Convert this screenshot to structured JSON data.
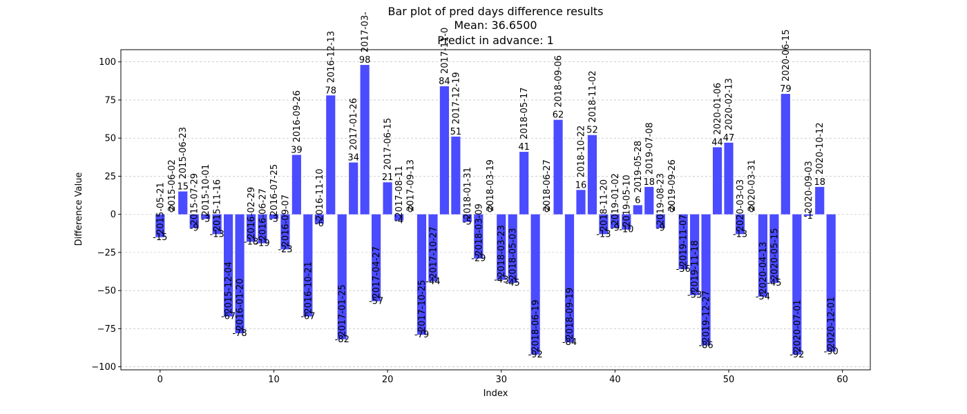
{
  "chart_data": {
    "type": "bar",
    "title": "Bar plot of pred days difference results",
    "subtitle_lines": [
      "Mean: 36.6500",
      "Predict in advance: 1"
    ],
    "xlabel": "Index",
    "ylabel": "Difference Value",
    "xlim": [
      -3.45,
      62.45
    ],
    "ylim": [
      -102,
      108
    ],
    "xticks": [
      0,
      10,
      20,
      30,
      40,
      50,
      60
    ],
    "yticks": [
      -100,
      -75,
      -50,
      -25,
      0,
      25,
      50,
      75,
      100
    ],
    "grid": "y-dashed",
    "bar_color": "#4b4bff",
    "x": [
      0,
      1,
      2,
      3,
      4,
      5,
      6,
      7,
      8,
      9,
      10,
      11,
      12,
      13,
      14,
      15,
      16,
      17,
      18,
      19,
      20,
      21,
      22,
      23,
      24,
      25,
      26,
      27,
      28,
      29,
      30,
      31,
      32,
      33,
      34,
      35,
      36,
      37,
      38,
      39,
      40,
      41,
      42,
      43,
      44,
      45,
      46,
      47,
      48,
      49,
      50,
      51,
      52,
      53,
      54,
      55,
      56,
      57,
      58,
      59
    ],
    "values": [
      -15,
      0,
      15,
      -9,
      -3,
      -13,
      -67,
      -78,
      -18,
      -19,
      -3,
      -23,
      39,
      -67,
      -6,
      78,
      -82,
      34,
      98,
      -57,
      21,
      -4,
      0,
      -79,
      -44,
      84,
      51,
      -5,
      -29,
      0,
      -43,
      -45,
      41,
      -92,
      0,
      62,
      -84,
      16,
      52,
      -13,
      -9,
      -10,
      6,
      18,
      -9,
      0,
      -36,
      -53,
      -86,
      44,
      47,
      -13,
      0,
      -54,
      -45,
      79,
      -92,
      -1,
      18,
      -90
    ],
    "dates": [
      "2015-05-21",
      "2015-06-02",
      "2015-06-23",
      "2015-07-29",
      "2015-10-01",
      "2015-11-16",
      "2015-12-04",
      "2016-01-20",
      "2016-02-29",
      "2016-06-27",
      "2016-07-25",
      "2016-09-07",
      "2016-09-26",
      "2016-10-21",
      "2016-11-10",
      "2016-12-13",
      "2017-01-25",
      "2017-01-26",
      "2017-03-",
      "2017-04-27",
      "2017-06-15",
      "2017-08-11",
      "2017-09-13",
      "2017-10-25",
      "2017-10-27",
      "2017-11-0",
      "2017-12-19",
      "2018-01-31",
      "2018-03-09",
      "2018-03-19",
      "2018-03-23",
      "2018-05-03",
      "2018-05-17",
      "2018-06-19",
      "2018-06-27",
      "2018-09-06",
      "2018-09-19",
      "2018-10-22",
      "2018-11-02",
      "2018-11-20",
      "2019-01-02",
      "2019-05-10",
      "2019-05-28",
      "2019-07-08",
      "2019-08-23",
      "2019-09-26",
      "2019-11-07",
      "2019-11-18",
      "2019-12-27",
      "2020-01-06",
      "2020-02-13",
      "2020-03-03",
      "2020-03-31",
      "2020-04-13",
      "2020-05-15",
      "2020-06-15",
      "2020-07-01",
      "2020-09-03",
      "2020-10-12",
      "2020-12-01"
    ]
  }
}
